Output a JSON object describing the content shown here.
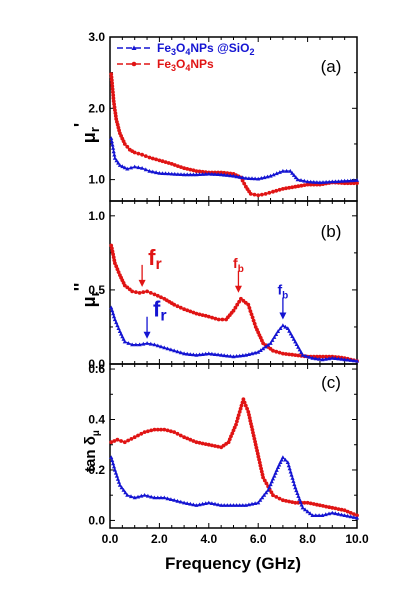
{
  "chart_data": {
    "type": "line",
    "xlabel": "Frequency (GHz)",
    "xlim": [
      0,
      10
    ],
    "xticks": [
      "0.0",
      "2.0",
      "4.0",
      "6.0",
      "8.0",
      "10.0"
    ],
    "legend": {
      "placement": "top-left",
      "entries": [
        {
          "key": "sio2",
          "parts": [
            "Fe",
            "3",
            "O",
            "4",
            "NPs @SiO",
            "2"
          ],
          "color": "#1414d2"
        },
        {
          "key": "bare",
          "parts": [
            "Fe",
            "3",
            "O",
            "4",
            "NPs"
          ],
          "color": "#e01414"
        }
      ]
    },
    "panels": [
      {
        "label": "(a)",
        "ylabel": {
          "base": "μ",
          "sub": "r",
          "sup": "'"
        },
        "ylim": [
          0.7,
          3.0
        ],
        "yticks": [
          1.0,
          2.0,
          3.0
        ],
        "ytick_labels": [
          "1.0",
          "2.0",
          "3.0"
        ],
        "series": [
          {
            "key": "bare",
            "color": "#e01414",
            "marker": "circle",
            "points": [
              [
                0.05,
                2.48
              ],
              [
                0.15,
                2.1
              ],
              [
                0.25,
                1.85
              ],
              [
                0.4,
                1.65
              ],
              [
                0.6,
                1.5
              ],
              [
                0.8,
                1.42
              ],
              [
                1.0,
                1.38
              ],
              [
                1.3,
                1.35
              ],
              [
                1.6,
                1.31
              ],
              [
                2.0,
                1.27
              ],
              [
                2.5,
                1.22
              ],
              [
                3.0,
                1.16
              ],
              [
                3.5,
                1.12
              ],
              [
                4.0,
                1.1
              ],
              [
                4.5,
                1.1
              ],
              [
                5.0,
                1.08
              ],
              [
                5.3,
                1.03
              ],
              [
                5.5,
                0.9
              ],
              [
                5.7,
                0.8
              ],
              [
                6.0,
                0.78
              ],
              [
                6.3,
                0.8
              ],
              [
                6.6,
                0.83
              ],
              [
                7.0,
                0.87
              ],
              [
                7.5,
                0.9
              ],
              [
                8.0,
                0.93
              ],
              [
                8.5,
                0.93
              ],
              [
                9.0,
                0.96
              ],
              [
                9.5,
                0.95
              ],
              [
                10.0,
                0.95
              ]
            ]
          },
          {
            "key": "sio2",
            "color": "#1414d2",
            "marker": "triangle",
            "points": [
              [
                0.05,
                1.58
              ],
              [
                0.2,
                1.3
              ],
              [
                0.4,
                1.2
              ],
              [
                0.7,
                1.15
              ],
              [
                1.0,
                1.18
              ],
              [
                1.3,
                1.16
              ],
              [
                1.6,
                1.12
              ],
              [
                2.0,
                1.09
              ],
              [
                2.5,
                1.08
              ],
              [
                3.0,
                1.07
              ],
              [
                3.5,
                1.07
              ],
              [
                4.0,
                1.08
              ],
              [
                4.5,
                1.07
              ],
              [
                5.0,
                1.05
              ],
              [
                5.5,
                1.02
              ],
              [
                6.0,
                1.01
              ],
              [
                6.5,
                1.05
              ],
              [
                7.0,
                1.12
              ],
              [
                7.3,
                1.12
              ],
              [
                7.6,
                1.0
              ],
              [
                8.0,
                0.97
              ],
              [
                8.5,
                0.96
              ],
              [
                9.0,
                0.97
              ],
              [
                9.5,
                0.98
              ],
              [
                10.0,
                0.99
              ]
            ]
          }
        ]
      },
      {
        "label": "(b)",
        "ylabel": {
          "base": "μ",
          "sub": "r",
          "sup": "''"
        },
        "ylim": [
          0.0,
          1.1
        ],
        "yticks": [
          0.0,
          0.5,
          1.0
        ],
        "ytick_labels": [
          "0.0",
          "0.5",
          "1.0"
        ],
        "annotations": [
          {
            "base": "f",
            "sub": "r",
            "x": 1.3,
            "y": 0.48,
            "color": "#e01414",
            "big": true
          },
          {
            "base": "f",
            "sub": "b",
            "x": 5.2,
            "y": 0.44,
            "color": "#e01414",
            "big": false
          },
          {
            "base": "f",
            "sub": "r",
            "x": 1.5,
            "y": 0.13,
            "color": "#1414d2",
            "big": true
          },
          {
            "base": "f",
            "sub": "b",
            "x": 7.0,
            "y": 0.26,
            "color": "#1414d2",
            "big": false
          }
        ],
        "series": [
          {
            "key": "bare",
            "color": "#e01414",
            "marker": "circle",
            "points": [
              [
                0.05,
                0.8
              ],
              [
                0.2,
                0.68
              ],
              [
                0.4,
                0.6
              ],
              [
                0.6,
                0.53
              ],
              [
                0.9,
                0.49
              ],
              [
                1.2,
                0.48
              ],
              [
                1.5,
                0.49
              ],
              [
                1.8,
                0.47
              ],
              [
                2.2,
                0.44
              ],
              [
                2.6,
                0.4
              ],
              [
                3.0,
                0.37
              ],
              [
                3.5,
                0.34
              ],
              [
                4.0,
                0.32
              ],
              [
                4.4,
                0.3
              ],
              [
                4.7,
                0.3
              ],
              [
                5.0,
                0.36
              ],
              [
                5.3,
                0.44
              ],
              [
                5.6,
                0.4
              ],
              [
                5.9,
                0.25
              ],
              [
                6.2,
                0.14
              ],
              [
                6.6,
                0.09
              ],
              [
                7.0,
                0.07
              ],
              [
                7.5,
                0.06
              ],
              [
                8.0,
                0.05
              ],
              [
                8.5,
                0.05
              ],
              [
                9.0,
                0.05
              ],
              [
                9.5,
                0.04
              ],
              [
                10.0,
                0.02
              ]
            ]
          },
          {
            "key": "sio2",
            "color": "#1414d2",
            "marker": "triangle",
            "points": [
              [
                0.05,
                0.38
              ],
              [
                0.2,
                0.3
              ],
              [
                0.4,
                0.22
              ],
              [
                0.6,
                0.15
              ],
              [
                0.9,
                0.13
              ],
              [
                1.2,
                0.13
              ],
              [
                1.5,
                0.14
              ],
              [
                1.8,
                0.13
              ],
              [
                2.2,
                0.11
              ],
              [
                2.6,
                0.09
              ],
              [
                3.0,
                0.07
              ],
              [
                3.5,
                0.06
              ],
              [
                4.0,
                0.07
              ],
              [
                4.5,
                0.06
              ],
              [
                5.0,
                0.05
              ],
              [
                5.5,
                0.06
              ],
              [
                6.0,
                0.08
              ],
              [
                6.5,
                0.14
              ],
              [
                6.8,
                0.22
              ],
              [
                7.0,
                0.26
              ],
              [
                7.2,
                0.24
              ],
              [
                7.5,
                0.15
              ],
              [
                7.8,
                0.06
              ],
              [
                8.2,
                0.04
              ],
              [
                8.6,
                0.03
              ],
              [
                9.0,
                0.04
              ],
              [
                9.5,
                0.03
              ],
              [
                10.0,
                0.02
              ]
            ]
          }
        ]
      },
      {
        "label": "(c)",
        "ylabel": {
          "base": "tan δ",
          "sub": "μ",
          "sup": ""
        },
        "ylim": [
          -0.03,
          0.62
        ],
        "yticks": [
          0.0,
          0.2,
          0.4,
          0.6
        ],
        "ytick_labels": [
          "0.0",
          "0.2",
          "0.4",
          "0.6"
        ],
        "series": [
          {
            "key": "bare",
            "color": "#e01414",
            "marker": "circle",
            "points": [
              [
                0.05,
                0.31
              ],
              [
                0.3,
                0.32
              ],
              [
                0.6,
                0.31
              ],
              [
                1.0,
                0.33
              ],
              [
                1.4,
                0.35
              ],
              [
                1.8,
                0.36
              ],
              [
                2.2,
                0.36
              ],
              [
                2.6,
                0.35
              ],
              [
                3.0,
                0.33
              ],
              [
                3.5,
                0.31
              ],
              [
                4.0,
                0.3
              ],
              [
                4.5,
                0.29
              ],
              [
                4.8,
                0.31
              ],
              [
                5.1,
                0.38
              ],
              [
                5.4,
                0.48
              ],
              [
                5.6,
                0.43
              ],
              [
                5.9,
                0.3
              ],
              [
                6.2,
                0.17
              ],
              [
                6.6,
                0.1
              ],
              [
                7.0,
                0.08
              ],
              [
                7.5,
                0.07
              ],
              [
                8.0,
                0.07
              ],
              [
                8.5,
                0.06
              ],
              [
                9.0,
                0.05
              ],
              [
                9.5,
                0.04
              ],
              [
                10.0,
                0.02
              ]
            ]
          },
          {
            "key": "sio2",
            "color": "#1414d2",
            "marker": "triangle",
            "points": [
              [
                0.05,
                0.25
              ],
              [
                0.2,
                0.2
              ],
              [
                0.4,
                0.14
              ],
              [
                0.7,
                0.1
              ],
              [
                1.0,
                0.09
              ],
              [
                1.4,
                0.1
              ],
              [
                1.8,
                0.09
              ],
              [
                2.2,
                0.09
              ],
              [
                2.6,
                0.08
              ],
              [
                3.0,
                0.07
              ],
              [
                3.5,
                0.06
              ],
              [
                4.0,
                0.07
              ],
              [
                4.5,
                0.06
              ],
              [
                5.0,
                0.06
              ],
              [
                5.5,
                0.06
              ],
              [
                6.0,
                0.07
              ],
              [
                6.4,
                0.12
              ],
              [
                6.8,
                0.21
              ],
              [
                7.0,
                0.25
              ],
              [
                7.2,
                0.23
              ],
              [
                7.5,
                0.13
              ],
              [
                7.8,
                0.05
              ],
              [
                8.2,
                0.02
              ],
              [
                8.6,
                0.02
              ],
              [
                9.0,
                0.03
              ],
              [
                9.5,
                0.02
              ],
              [
                10.0,
                0.01
              ]
            ]
          }
        ]
      }
    ]
  }
}
